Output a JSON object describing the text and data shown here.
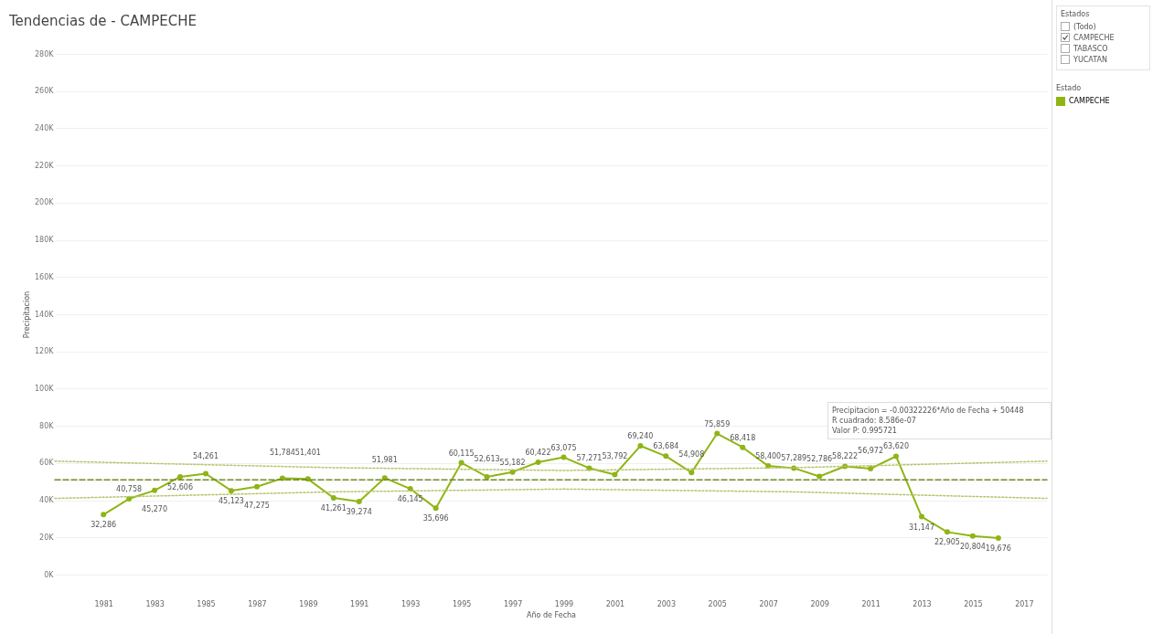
{
  "chart_data": {
    "type": "line",
    "title": "Tendencias de - CAMPECHE",
    "xlabel": "Año de Fecha",
    "ylabel": "Precipitacion",
    "legend_title": "Estado",
    "legend": "right",
    "grid": "y",
    "x": [
      1981,
      1982,
      1983,
      1984,
      1985,
      1986,
      1987,
      1988,
      1989,
      1990,
      1991,
      1992,
      1993,
      1994,
      1995,
      1996,
      1997,
      1998,
      1999,
      2000,
      2001,
      2002,
      2003,
      2004,
      2005,
      2006,
      2007,
      2008,
      2009,
      2010,
      2011,
      2012,
      2013,
      2014,
      2015,
      2016
    ],
    "series": [
      {
        "name": "CAMPECHE",
        "color": "#8fb514",
        "marker": "circle",
        "line_style": "solid",
        "values": [
          32286,
          40758,
          45270,
          52606,
          54261,
          45123,
          47275,
          51784,
          51401,
          41261,
          39274,
          51981,
          46145,
          35696,
          60115,
          52613,
          55182,
          60422,
          63075,
          57271,
          53792,
          69240,
          63684,
          54908,
          75859,
          68418,
          58400,
          57289,
          52786,
          58222,
          56972,
          63620,
          31147,
          22905,
          20804,
          19676
        ],
        "value_labels": [
          "32,286",
          "40,758",
          "45,270",
          "52,606",
          "54,261",
          "45,123",
          "47,275",
          "51,784",
          "51,401",
          "41,261",
          "39,274",
          "51,981",
          "46,145",
          "35,696",
          "60,115",
          "52,613",
          "55,182",
          "60,422",
          "63,075",
          "57,271",
          "53,792",
          "69,240",
          "63,684",
          "54,908",
          "75,859",
          "68,418",
          "58,400",
          "57,289",
          "52,786",
          "58,222",
          "56,972",
          "63,620",
          "31,147",
          "22,905",
          "20,804",
          "19,676"
        ]
      },
      {
        "color": "#6e8a2a",
        "line_style": "dashed",
        "x": [
          1979.1,
          2017.9
        ],
        "values": [
          51000,
          51000
        ]
      },
      {
        "color": "#b5c46a",
        "line_style": "dotted",
        "x": [
          1979.1,
          1990,
          1999,
          2008,
          2017.9
        ],
        "values": [
          61000,
          57500,
          56000,
          57500,
          61000
        ]
      },
      {
        "color": "#b5c46a",
        "line_style": "dotted",
        "x": [
          1979.1,
          1990,
          1999,
          2008,
          2017.9
        ],
        "values": [
          41000,
          44500,
          46000,
          44500,
          41000
        ]
      }
    ],
    "xlim": [
      1979.1,
      2017.9
    ],
    "xticks": [
      1981,
      1983,
      1985,
      1987,
      1989,
      1991,
      1993,
      1995,
      1997,
      1999,
      2001,
      2003,
      2005,
      2007,
      2009,
      2011,
      2013,
      2015,
      2017
    ],
    "ylim": [
      0,
      280000
    ],
    "yticks": [
      {
        "value": 0,
        "label": "0K"
      },
      {
        "value": 20000,
        "label": "20K"
      },
      {
        "value": 40000,
        "label": "40K"
      },
      {
        "value": 60000,
        "label": "60K"
      },
      {
        "value": 80000,
        "label": "80K"
      },
      {
        "value": 100000,
        "label": "100K"
      },
      {
        "value": 120000,
        "label": "120K"
      },
      {
        "value": 140000,
        "label": "140K"
      },
      {
        "value": 160000,
        "label": "160K"
      },
      {
        "value": 180000,
        "label": "180K"
      },
      {
        "value": 200000,
        "label": "200K"
      },
      {
        "value": 220000,
        "label": "220K"
      },
      {
        "value": 240000,
        "label": "240K"
      },
      {
        "value": 260000,
        "label": "260K"
      },
      {
        "value": 280000,
        "label": "280K"
      }
    ],
    "annotations": [
      "Precipitacion = -0.00322226*Año de Fecha + 50448",
      "R cuadrado: 8.586e-07",
      "Valor P: 0.995721",
      "Estados",
      "(Todo)",
      "CAMPECHE",
      "TABASCO",
      "YUCATAN"
    ]
  }
}
